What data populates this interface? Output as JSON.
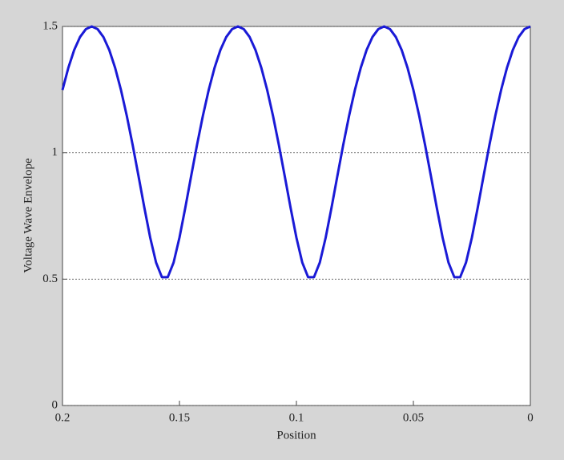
{
  "chart_data": {
    "type": "line",
    "xlabel": "Position",
    "ylabel": "Voltage Wave Envelope",
    "x": [
      0,
      0.0025,
      0.005,
      0.0075,
      0.01,
      0.0125,
      0.015,
      0.0175,
      0.02,
      0.0225,
      0.025,
      0.0275,
      0.03,
      0.0325,
      0.035,
      0.0375,
      0.04,
      0.0425,
      0.045,
      0.0475,
      0.05,
      0.0525,
      0.055,
      0.0575,
      0.06,
      0.0625,
      0.065,
      0.0675,
      0.07,
      0.0725,
      0.075,
      0.0775,
      0.08,
      0.0825,
      0.085,
      0.0875,
      0.09,
      0.0925,
      0.095,
      0.0975,
      0.1,
      0.1025,
      0.105,
      0.1075,
      0.11,
      0.1125,
      0.115,
      0.1175,
      0.12,
      0.1225,
      0.125,
      0.1275,
      0.13,
      0.1325,
      0.135,
      0.1375,
      0.14,
      0.1425,
      0.145,
      0.1475,
      0.15,
      0.1525,
      0.155,
      0.1575,
      0.16,
      0.1625,
      0.165,
      0.1675,
      0.17,
      0.1725,
      0.175,
      0.1775,
      0.18,
      0.1825,
      0.185,
      0.1875,
      0.19,
      0.1925,
      0.195,
      0.1975,
      0.2
    ],
    "series": [
      {
        "color": "#1a1ad6",
        "values": [
          1.5,
          1.4895,
          1.4582,
          1.4068,
          1.3363,
          1.2486,
          1.1458,
          1.0308,
          0.9079,
          0.7827,
          0.6641,
          0.5659,
          0.5078,
          0.5078,
          0.5659,
          0.6641,
          0.7827,
          0.9079,
          1.0308,
          1.1458,
          1.2486,
          1.3363,
          1.4068,
          1.4582,
          1.4895,
          1.5,
          1.4895,
          1.4582,
          1.4068,
          1.3363,
          1.2486,
          1.1458,
          1.0308,
          0.9079,
          0.7827,
          0.6641,
          0.5659,
          0.5078,
          0.5078,
          0.5659,
          0.6641,
          0.7827,
          0.9079,
          1.0308,
          1.1458,
          1.2486,
          1.3363,
          1.4068,
          1.4582,
          1.4895,
          1.5,
          1.4895,
          1.4582,
          1.4068,
          1.3363,
          1.2486,
          1.1458,
          1.0308,
          0.9079,
          0.7827,
          0.6641,
          0.5659,
          0.5078,
          0.5078,
          0.5659,
          0.6641,
          0.7827,
          0.9079,
          1.0308,
          1.1458,
          1.2486,
          1.3363,
          1.4068,
          1.4582,
          1.4895,
          1.5,
          1.4895,
          1.4582,
          1.4068,
          1.3363,
          1.2486
        ]
      }
    ],
    "xlim": [
      0.2,
      0
    ],
    "xticks": [
      0.2,
      0.15,
      0.1,
      0.05,
      0
    ],
    "ylim": [
      0,
      1.5
    ],
    "yticks": [
      0,
      0.5,
      1,
      1.5
    ],
    "grid": "y"
  }
}
